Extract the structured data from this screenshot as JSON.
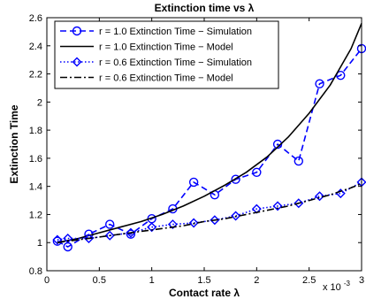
{
  "chart_data": {
    "type": "line",
    "title": "Extinction time vs λ",
    "xlabel": "Contact rate λ",
    "ylabel": "Extinction Time",
    "x_multiplier": "x 10",
    "x_multiplier_exp": "-3",
    "xlim": [
      0,
      3
    ],
    "ylim": [
      0.8,
      2.6
    ],
    "x_ticks": [
      "0",
      "0.5",
      "1",
      "1.5",
      "2",
      "2.5",
      "3"
    ],
    "y_ticks": [
      "0.8",
      "1",
      "1.2",
      "1.4",
      "1.6",
      "1.8",
      "2",
      "2.2",
      "2.4",
      "2.6"
    ],
    "grid": false,
    "legend_position": "top-left",
    "series": [
      {
        "name": "r = 1.0 Extinction Time − Simulation",
        "color": "#0000ff",
        "line_style": "dashed",
        "marker": "circle",
        "x": [
          0.1,
          0.2,
          0.4,
          0.6,
          0.8,
          1.0,
          1.2,
          1.4,
          1.6,
          1.8,
          2.0,
          2.2,
          2.4,
          2.6,
          2.8,
          3.0
        ],
        "y": [
          1.01,
          0.97,
          1.06,
          1.13,
          1.06,
          1.17,
          1.24,
          1.43,
          1.34,
          1.45,
          1.5,
          1.7,
          1.58,
          2.13,
          2.19,
          2.38
        ]
      },
      {
        "name": "r = 1.0 Extinction Time − Model",
        "color": "#000000",
        "line_style": "solid",
        "marker": "none",
        "x": [
          0.1,
          0.3,
          0.5,
          0.7,
          0.9,
          1.1,
          1.3,
          1.5,
          1.7,
          1.9,
          2.1,
          2.3,
          2.5,
          2.7,
          2.9,
          3.0
        ],
        "y": [
          1.0,
          1.03,
          1.07,
          1.11,
          1.15,
          1.2,
          1.26,
          1.33,
          1.41,
          1.5,
          1.61,
          1.75,
          1.92,
          2.12,
          2.38,
          2.56
        ]
      },
      {
        "name": "r = 0.6 Extinction Time − Simulation",
        "color": "#0000ff",
        "line_style": "dotted",
        "marker": "diamond",
        "x": [
          0.1,
          0.2,
          0.4,
          0.6,
          0.8,
          1.0,
          1.2,
          1.4,
          1.6,
          1.8,
          2.0,
          2.2,
          2.4,
          2.6,
          2.8,
          3.0
        ],
        "y": [
          1.02,
          1.03,
          1.03,
          1.05,
          1.07,
          1.11,
          1.13,
          1.14,
          1.16,
          1.19,
          1.24,
          1.26,
          1.28,
          1.33,
          1.35,
          1.43
        ]
      },
      {
        "name": "r = 0.6 Extinction Time − Model",
        "color": "#000000",
        "line_style": "dashdot",
        "marker": "none",
        "x": [
          0.1,
          0.3,
          0.5,
          0.7,
          0.9,
          1.1,
          1.3,
          1.5,
          1.7,
          1.9,
          2.1,
          2.3,
          2.5,
          2.7,
          2.9,
          3.0
        ],
        "y": [
          1.0,
          1.02,
          1.04,
          1.06,
          1.08,
          1.1,
          1.12,
          1.15,
          1.17,
          1.2,
          1.23,
          1.26,
          1.3,
          1.34,
          1.39,
          1.42
        ]
      }
    ]
  }
}
